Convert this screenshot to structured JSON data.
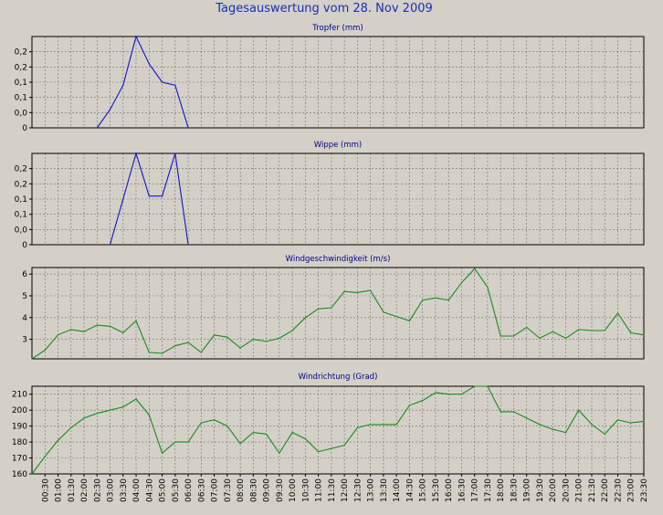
{
  "title": "Tagesauswertung vom 28. Nov 2009",
  "chart_data": [
    {
      "type": "line",
      "title": "Tropfer (mm)",
      "color": "#1414c8",
      "ylim": [
        0,
        0.3
      ],
      "yticks": [
        0.0,
        0.05,
        0.1,
        0.15,
        0.2,
        0.25
      ],
      "ytick_labels": [
        "0",
        "0,0",
        "0,1",
        "0,1",
        "0,2",
        "0,2"
      ],
      "x": [
        "02:30",
        "03:00",
        "03:30",
        "04:00",
        "04:30",
        "05:00",
        "05:30",
        "06:00"
      ],
      "values": [
        0.0,
        0.06,
        0.14,
        0.3,
        0.21,
        0.15,
        0.14,
        0.0
      ],
      "grid": true
    },
    {
      "type": "line",
      "title": "Wippe (mm)",
      "color": "#1414c8",
      "ylim": [
        0,
        0.3
      ],
      "yticks": [
        0.0,
        0.05,
        0.1,
        0.15,
        0.2,
        0.25
      ],
      "ytick_labels": [
        "0",
        "0,0",
        "0,1",
        "0,1",
        "0,2",
        "0,2"
      ],
      "x": [
        "03:00",
        "03:30",
        "04:00",
        "04:30",
        "05:00",
        "05:30",
        "06:00"
      ],
      "values": [
        0.0,
        0.15,
        0.3,
        0.16,
        0.16,
        0.3,
        0.0
      ],
      "grid": true
    },
    {
      "type": "line",
      "title": "Windgeschwindigkeit (m/s)",
      "color": "#1a8a1a",
      "ylim": [
        2.1,
        6.3
      ],
      "yticks": [
        3,
        4,
        5,
        6
      ],
      "ytick_labels": [
        "3",
        "4",
        "5",
        "6"
      ],
      "x": [
        "00:00",
        "00:30",
        "01:00",
        "01:30",
        "02:00",
        "02:30",
        "03:00",
        "03:30",
        "04:00",
        "04:30",
        "05:00",
        "05:30",
        "06:00",
        "06:30",
        "07:00",
        "07:30",
        "08:00",
        "08:30",
        "09:00",
        "09:30",
        "10:00",
        "10:30",
        "11:00",
        "11:30",
        "12:00",
        "12:30",
        "13:00",
        "13:30",
        "14:00",
        "14:30",
        "15:00",
        "15:30",
        "16:00",
        "16:30",
        "17:00",
        "17:30",
        "18:00",
        "18:30",
        "19:00",
        "19:30",
        "20:00",
        "20:30",
        "21:00",
        "21:30",
        "22:00",
        "22:30",
        "23:00",
        "23:30"
      ],
      "values": [
        2.1,
        2.5,
        3.2,
        3.45,
        3.35,
        3.65,
        3.6,
        3.3,
        3.85,
        2.4,
        2.35,
        2.7,
        2.85,
        2.4,
        3.2,
        3.1,
        2.6,
        3.0,
        2.9,
        3.05,
        3.4,
        4.0,
        4.4,
        4.45,
        5.2,
        5.15,
        5.25,
        4.25,
        4.05,
        3.85,
        4.8,
        4.9,
        4.8,
        5.6,
        6.25,
        5.4,
        3.15,
        3.15,
        3.55,
        3.05,
        3.35,
        3.05,
        3.45,
        3.4,
        3.4,
        4.2,
        3.3,
        3.2
      ],
      "grid": true
    },
    {
      "type": "line",
      "title": "Windrichtung (Grad)",
      "color": "#1a8a1a",
      "ylim": [
        160,
        215
      ],
      "yticks": [
        160,
        170,
        180,
        190,
        200,
        210
      ],
      "ytick_labels": [
        "160",
        "170",
        "180",
        "190",
        "200",
        "210"
      ],
      "x": [
        "00:00",
        "00:30",
        "01:00",
        "01:30",
        "02:00",
        "02:30",
        "03:00",
        "03:30",
        "04:00",
        "04:30",
        "05:00",
        "05:30",
        "06:00",
        "06:30",
        "07:00",
        "07:30",
        "08:00",
        "08:30",
        "09:00",
        "09:30",
        "10:00",
        "10:30",
        "11:00",
        "11:30",
        "12:00",
        "12:30",
        "13:00",
        "13:30",
        "14:00",
        "14:30",
        "15:00",
        "15:30",
        "16:00",
        "16:30",
        "17:00",
        "17:30",
        "18:00",
        "18:30",
        "19:00",
        "19:30",
        "20:00",
        "20:30",
        "21:00",
        "21:30",
        "22:00",
        "22:30",
        "23:00",
        "23:30"
      ],
      "values": [
        160,
        171,
        181,
        189,
        195,
        198,
        200,
        202,
        207,
        197,
        173,
        180,
        180,
        192,
        194,
        190,
        179,
        186,
        185,
        173,
        186,
        182,
        174,
        176,
        178,
        189,
        191,
        191,
        191,
        203,
        206,
        211,
        210,
        210,
        215,
        215,
        199,
        199,
        195,
        191,
        188,
        186,
        200,
        191,
        185,
        194,
        192,
        193
      ],
      "grid": true
    }
  ],
  "x_tick_labels": [
    "00:30",
    "01:00",
    "01:30",
    "02:00",
    "02:30",
    "03:00",
    "03:30",
    "04:00",
    "04:30",
    "05:00",
    "05:30",
    "06:00",
    "06:30",
    "07:00",
    "07:30",
    "08:00",
    "08:30",
    "09:00",
    "09:30",
    "10:00",
    "10:30",
    "11:00",
    "11:30",
    "12:00",
    "12:30",
    "13:00",
    "13:30",
    "14:00",
    "14:30",
    "15:00",
    "15:30",
    "16:00",
    "16:30",
    "17:00",
    "17:30",
    "18:00",
    "18:30",
    "19:00",
    "19:30",
    "20:00",
    "20:30",
    "21:00",
    "21:30",
    "22:00",
    "22:30",
    "23:00",
    "23:30"
  ]
}
